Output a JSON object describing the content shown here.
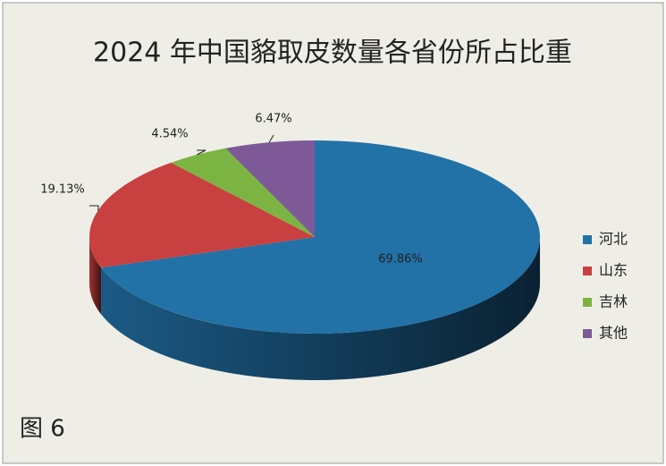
{
  "chart_data": {
    "type": "pie",
    "title": "2024 年中国貉取皮数量各省份所占比重",
    "caption": "图 6",
    "categories": [
      "河北",
      "山东",
      "吉林",
      "其他"
    ],
    "values": [
      69.86,
      19.13,
      4.54,
      6.47
    ],
    "value_labels": [
      "69.86%",
      "19.13%",
      "4.54%",
      "6.47%"
    ],
    "colors": [
      "#2271a7",
      "#c8403f",
      "#7cb443",
      "#7d5a97"
    ],
    "legend": "right"
  }
}
